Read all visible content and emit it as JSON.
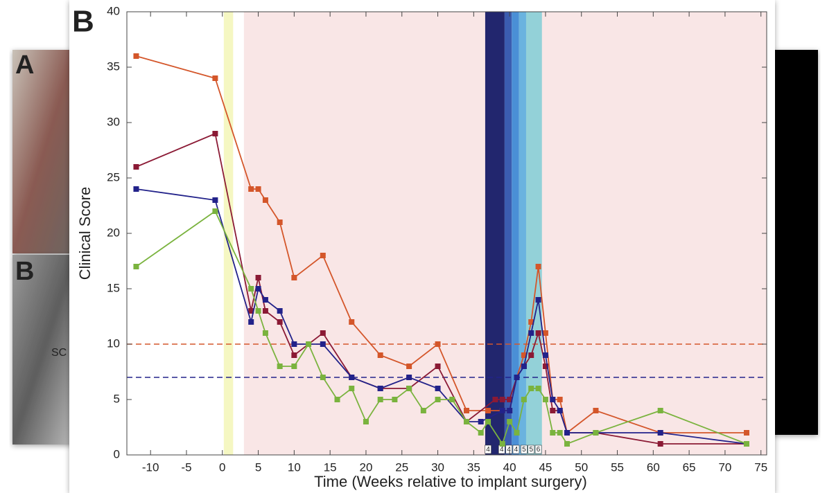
{
  "background": {
    "a_label": "A",
    "b_label": "B",
    "sc_label": "SC"
  },
  "panel_label": "B",
  "chart_data": {
    "type": "line",
    "x_label": "Time (Weeks relative to implant surgery)",
    "y_label": "Clinical Score",
    "xlim": [
      -13.3,
      75.8
    ],
    "ylim": [
      0,
      40
    ],
    "xticks": [
      -10,
      -5,
      0,
      5,
      10,
      15,
      20,
      25,
      30,
      35,
      40,
      45,
      50,
      55,
      60,
      65,
      70,
      75
    ],
    "yticks": [
      0,
      5,
      10,
      15,
      20,
      25,
      30,
      35,
      40
    ],
    "grid": false,
    "shaded_regions": [
      {
        "x": [
          3,
          75.8
        ],
        "color": "#f9e6e6"
      },
      {
        "x": [
          0.2,
          1.5
        ],
        "color": "#f5f7c2"
      },
      {
        "x": [
          36.6,
          39.3
        ],
        "color": "#22266e"
      },
      {
        "x": [
          39.3,
          40.3
        ],
        "color": "#3b5cb0"
      },
      {
        "x": [
          40.3,
          41.3
        ],
        "color": "#4a8fd6"
      },
      {
        "x": [
          41.3,
          42.3
        ],
        "color": "#6ab3df"
      },
      {
        "x": [
          42.3,
          44.5
        ],
        "color": "#93d1d8"
      }
    ],
    "phase_labels": {
      "x": [
        37,
        38.9,
        39.9,
        40.9,
        42,
        43,
        44
      ],
      "labels": [
        "4",
        "4",
        "4",
        "4",
        "5",
        "5",
        "6"
      ]
    },
    "reference_lines": [
      {
        "y": 10,
        "color": "#d4562a"
      },
      {
        "y": 7,
        "color": "#22228a"
      }
    ],
    "series": [
      {
        "color": "#d4562a",
        "x": [
          -12,
          -1,
          4,
          5,
          6,
          8,
          10,
          14,
          18,
          22,
          26,
          30,
          34,
          37,
          39,
          40,
          41,
          42,
          43,
          44,
          45,
          46,
          47,
          48,
          52,
          61,
          73
        ],
        "values": [
          36,
          34,
          24,
          24,
          23,
          21,
          16,
          18,
          12,
          9,
          8,
          10,
          4,
          4,
          4,
          4,
          7,
          9,
          12,
          17,
          11,
          5,
          5,
          2,
          4,
          2,
          2
        ]
      },
      {
        "color": "#8b1a35",
        "x": [
          -12,
          -1,
          4,
          5,
          6,
          8,
          10,
          14,
          18,
          22,
          26,
          30,
          34,
          38,
          39,
          40,
          41,
          42,
          43,
          44,
          45,
          46,
          47,
          48,
          52,
          61,
          73
        ],
        "values": [
          26,
          29,
          13,
          16,
          13,
          12,
          9,
          11,
          7,
          6,
          6,
          8,
          3,
          5,
          5,
          5,
          7,
          8,
          9,
          11,
          8,
          4,
          4,
          2,
          2,
          1,
          1
        ]
      },
      {
        "color": "#22228a",
        "x": [
          -12,
          -1,
          4,
          5,
          6,
          8,
          10,
          14,
          18,
          22,
          26,
          30,
          34,
          36,
          39,
          40,
          41,
          42,
          43,
          44,
          45,
          46,
          47,
          48,
          52,
          61,
          73
        ],
        "values": [
          24,
          23,
          12,
          15,
          14,
          13,
          10,
          10,
          7,
          6,
          7,
          6,
          3,
          3,
          4,
          4,
          7,
          8,
          11,
          14,
          9,
          5,
          4,
          2,
          2,
          2,
          1
        ]
      },
      {
        "color": "#7ab33e",
        "x": [
          -12,
          -1,
          4,
          5,
          6,
          8,
          10,
          12,
          14,
          16,
          18,
          20,
          22,
          24,
          26,
          28,
          30,
          32,
          34,
          36,
          37,
          39,
          40,
          41,
          42,
          43,
          44,
          45,
          46,
          47,
          48,
          52,
          61,
          73
        ],
        "values": [
          17,
          22,
          15,
          13,
          11,
          8,
          8,
          10,
          7,
          5,
          6,
          3,
          5,
          5,
          6,
          4,
          5,
          5,
          3,
          2,
          3,
          1,
          3,
          2,
          5,
          6,
          6,
          5,
          2,
          2,
          1,
          2,
          4,
          1
        ]
      }
    ]
  }
}
